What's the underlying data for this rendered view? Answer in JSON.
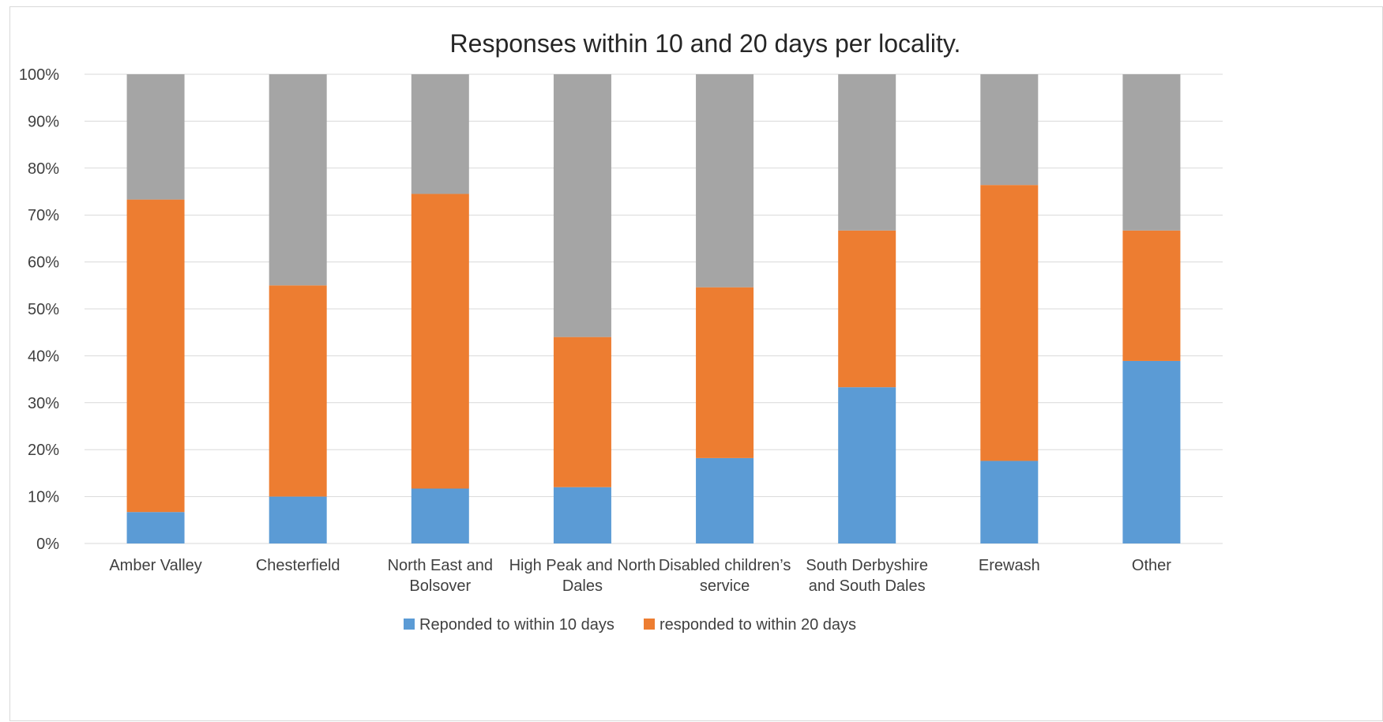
{
  "chart_data": {
    "type": "bar",
    "stacked": true,
    "title": "Responses within 10 and 20 days per locality.",
    "categories": [
      [
        "Amber Valley"
      ],
      [
        "Chesterfield"
      ],
      [
        "North East and",
        "Bolsover"
      ],
      [
        "High Peak and North",
        "Dales"
      ],
      [
        "Disabled children’s",
        "service"
      ],
      [
        "South Derbyshire",
        "and South Dales"
      ],
      [
        "Erewash"
      ],
      [
        "Other"
      ]
    ],
    "series": [
      {
        "name": "Reponded to within 10 days",
        "color": "#5B9BD5",
        "values": [
          6.7,
          10.0,
          11.7,
          12.0,
          18.2,
          33.3,
          17.6,
          38.9
        ]
      },
      {
        "name": "responded to within 20 days",
        "color": "#ED7D31",
        "values": [
          66.6,
          45.0,
          62.8,
          32.0,
          36.4,
          33.4,
          58.8,
          27.8
        ]
      },
      {
        "name": "",
        "color": "#A5A5A5",
        "values": [
          26.7,
          45.0,
          25.5,
          56.0,
          45.4,
          33.3,
          23.6,
          33.3
        ]
      }
    ],
    "yticks": [
      "0%",
      "10%",
      "20%",
      "30%",
      "40%",
      "50%",
      "60%",
      "70%",
      "80%",
      "90%",
      "100%"
    ],
    "ylim": [
      0,
      100
    ],
    "grid": true,
    "legend_position": "bottom"
  }
}
